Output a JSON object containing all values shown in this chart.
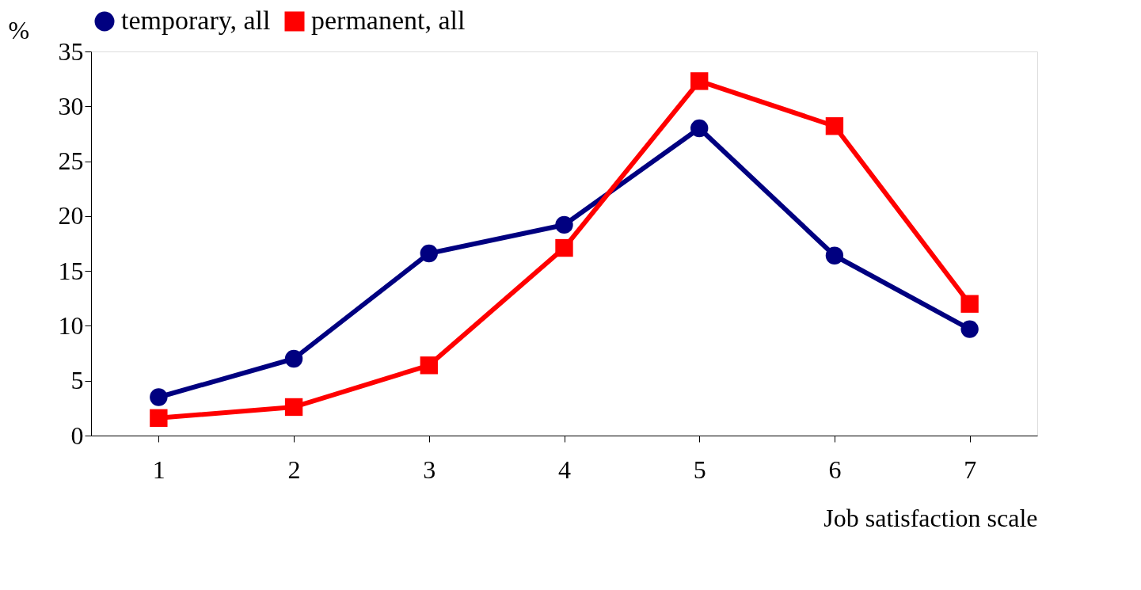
{
  "chart_data": {
    "type": "line",
    "xlabel": "Job satisfaction scale",
    "ylabel": "%",
    "categories": [
      "1",
      "2",
      "3",
      "4",
      "5",
      "6",
      "7"
    ],
    "series": [
      {
        "name": "temporary, all",
        "color": "#000080",
        "marker": "circle",
        "values": [
          3.5,
          7.0,
          16.6,
          19.2,
          28.0,
          16.4,
          9.7
        ]
      },
      {
        "name": "permanent, all",
        "color": "#ff0000",
        "marker": "square",
        "values": [
          1.6,
          2.6,
          6.4,
          17.1,
          32.3,
          28.2,
          12.0
        ]
      }
    ],
    "ylim": [
      0,
      35
    ],
    "yticks": [
      0,
      5,
      10,
      15,
      20,
      25,
      30,
      35
    ],
    "grid": false,
    "legend": "top",
    "line_style": "solid"
  }
}
